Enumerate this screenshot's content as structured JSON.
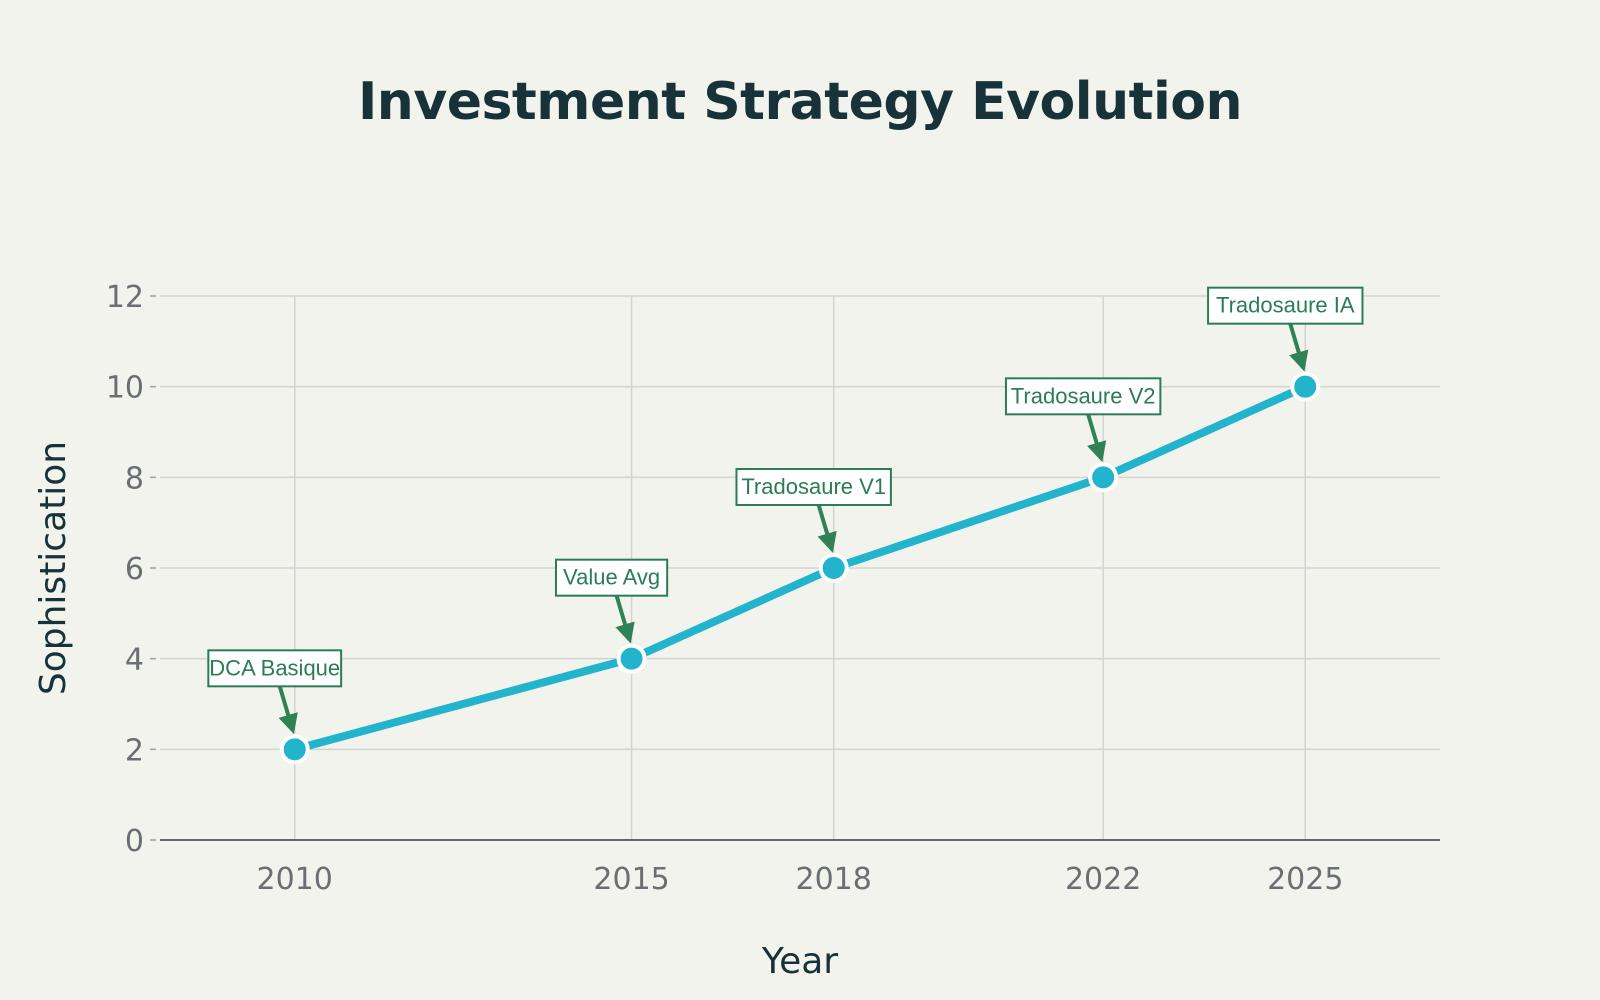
{
  "chart_data": {
    "type": "line",
    "title": "Investment Strategy Evolution",
    "xlabel": "Year",
    "ylabel": "Sophistication",
    "x": [
      2010,
      2015,
      2018,
      2022,
      2025
    ],
    "series": [
      {
        "values": [
          2,
          4,
          6,
          8,
          10
        ]
      }
    ],
    "annotations": [
      {
        "x": 2010,
        "y": 2,
        "text": "DCA Basique"
      },
      {
        "x": 2015,
        "y": 4,
        "text": "Value Avg"
      },
      {
        "x": 2018,
        "y": 6,
        "text": "Tradosaure V1"
      },
      {
        "x": 2022,
        "y": 8,
        "text": "Tradosaure V2"
      },
      {
        "x": 2025,
        "y": 10,
        "text": "Tradosaure IA"
      }
    ],
    "xlim": [
      2008,
      2027
    ],
    "ylim": [
      0,
      12
    ],
    "yticks": [
      0,
      2,
      4,
      6,
      8,
      10,
      12
    ],
    "xticks": [
      2010,
      2015,
      2018,
      2022,
      2025
    ],
    "grid": true,
    "colors": {
      "line": "#22b4cc",
      "annotation": "#2a7d54",
      "background": "#f3f3ee",
      "title": "#18323a"
    }
  }
}
